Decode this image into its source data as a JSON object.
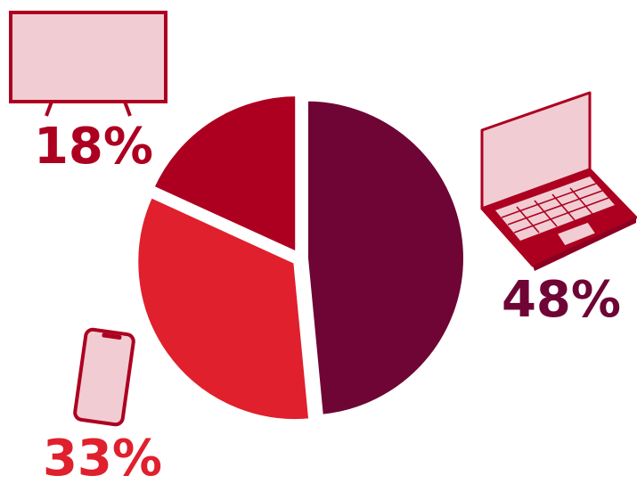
{
  "chart_data": {
    "type": "pie",
    "values": [
      48,
      33,
      18
    ],
    "value_labels": [
      "48%",
      "33%",
      "18%"
    ],
    "colors": [
      "#6e0535",
      "#e0202d",
      "#ad0020"
    ]
  }
}
